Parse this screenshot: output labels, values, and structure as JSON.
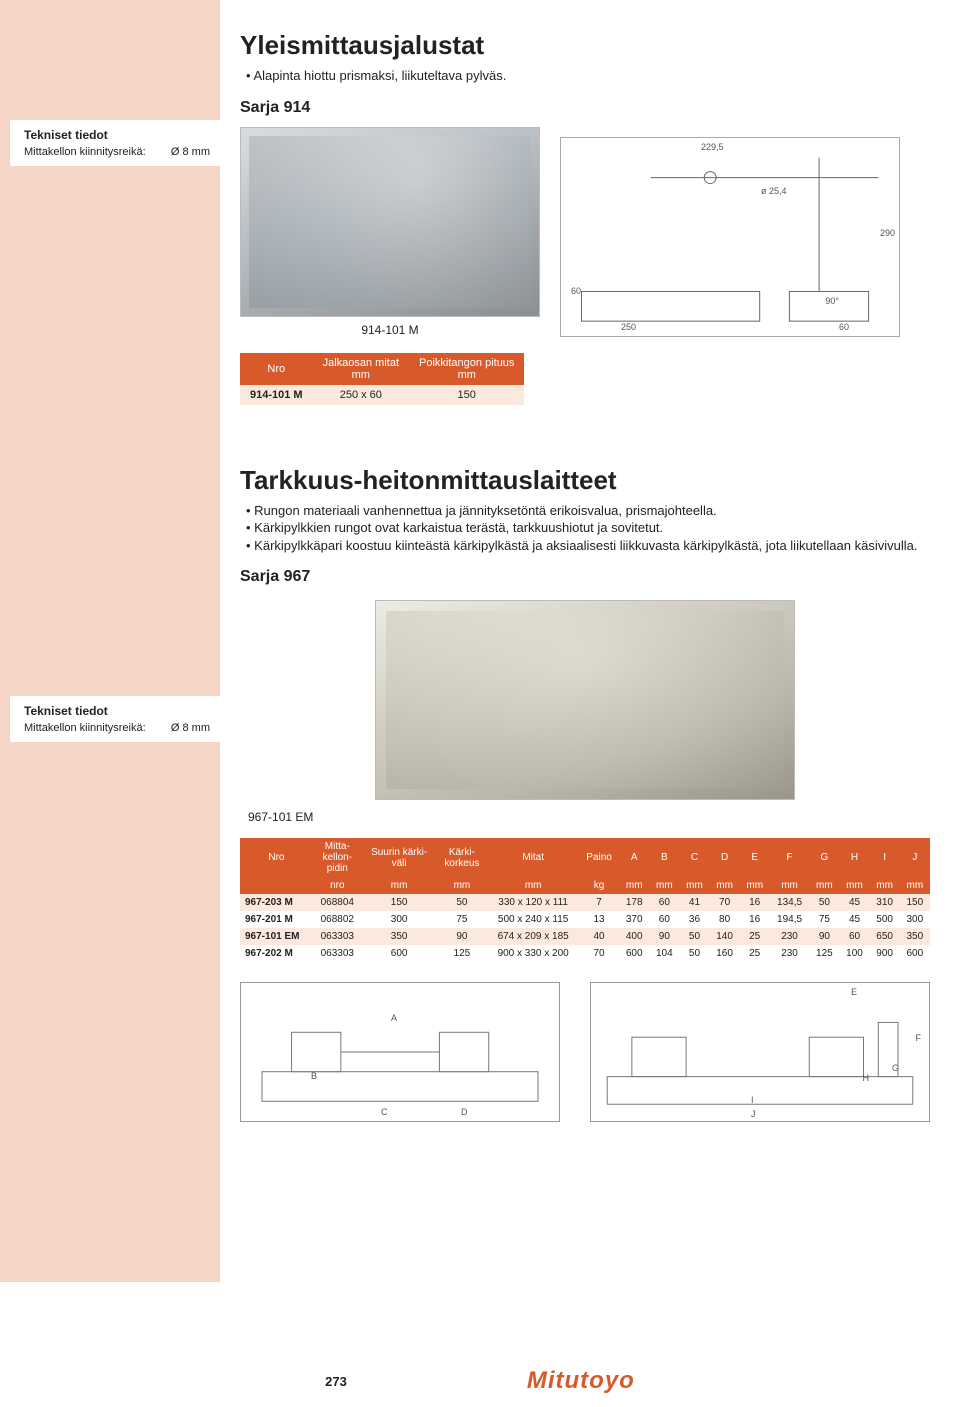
{
  "brand": {
    "name": "Mitutoyo",
    "color": "#d85a2a"
  },
  "page_number": "273",
  "accent_color": "#d85a2a",
  "peach_color": "#f5d6c6",
  "background_color": "#ffffff",
  "tech_block": {
    "title": "Tekniset tiedot",
    "label": "Mittakellon kiinnitysreikä:",
    "value": "Ø 8 mm"
  },
  "section1": {
    "heading": "Yleismittausjalustat",
    "bullets": [
      "Alapinta hiottu prismaksi, liikuteltava pylväs."
    ],
    "series_label": "Sarja 914",
    "model_code": "914-101 M",
    "schematic_dims": {
      "top_width": "229,5",
      "col_diam": "ø 25,4",
      "height": "290",
      "base_w": "250",
      "base_d": "60",
      "base_h": "60",
      "angle": "90°"
    },
    "table": {
      "columns": [
        "Nro",
        "Jalkaosan mitat",
        "Poikkitangon pituus"
      ],
      "units": [
        "",
        "mm",
        "mm"
      ],
      "rows": [
        [
          "914-101 M",
          "250 x 60",
          "150"
        ]
      ]
    }
  },
  "section2": {
    "heading": "Tarkkuus-heitonmittauslaitteet",
    "bullets": [
      "Rungon materiaali vanhennettua ja jännityksetöntä erikoisvalua, prismajohteella.",
      "Kärkipylkkien rungot ovat karkaistua terästä, tarkkuushiotut ja sovitetut.",
      "Kärkipylkkäpari koostuu kiinteästä kärkipylkästä ja aksiaalisesti liikkuvasta kärkipylkästä, jota liikutellaan käsivivulla."
    ],
    "series_label": "Sarja 967",
    "model_code": "967-101 EM",
    "table": {
      "columns": [
        "Nro",
        "Mitta-kellon-pidin",
        "Suurin kärki-väli",
        "Kärki-korkeus",
        "Mitat",
        "Paino",
        "A",
        "B",
        "C",
        "D",
        "E",
        "F",
        "G",
        "H",
        "I",
        "J"
      ],
      "sub_units": [
        "",
        "nro",
        "mm",
        "mm",
        "mm",
        "kg",
        "mm",
        "mm",
        "mm",
        "mm",
        "mm",
        "mm",
        "mm",
        "mm",
        "mm",
        "mm"
      ],
      "rows": [
        [
          "967-203 M",
          "068804",
          "150",
          "50",
          "330 x 120 x 111",
          "7",
          "178",
          "60",
          "41",
          "70",
          "16",
          "134,5",
          "50",
          "45",
          "310",
          "150"
        ],
        [
          "967-201 M",
          "068802",
          "300",
          "75",
          "500 x 240 x 115",
          "13",
          "370",
          "60",
          "36",
          "80",
          "16",
          "194,5",
          "75",
          "45",
          "500",
          "300"
        ],
        [
          "967-101 EM",
          "063303",
          "350",
          "90",
          "674 x 209 x 185",
          "40",
          "400",
          "90",
          "50",
          "140",
          "25",
          "230",
          "90",
          "60",
          "650",
          "350"
        ],
        [
          "967-202 M",
          "063303",
          "600",
          "125",
          "900 x 330 x 200",
          "70",
          "600",
          "104",
          "50",
          "160",
          "25",
          "230",
          "125",
          "100",
          "900",
          "600"
        ]
      ]
    },
    "diagram_labels": [
      "A",
      "B",
      "C",
      "D",
      "E",
      "F",
      "G",
      "H",
      "I",
      "J"
    ]
  }
}
